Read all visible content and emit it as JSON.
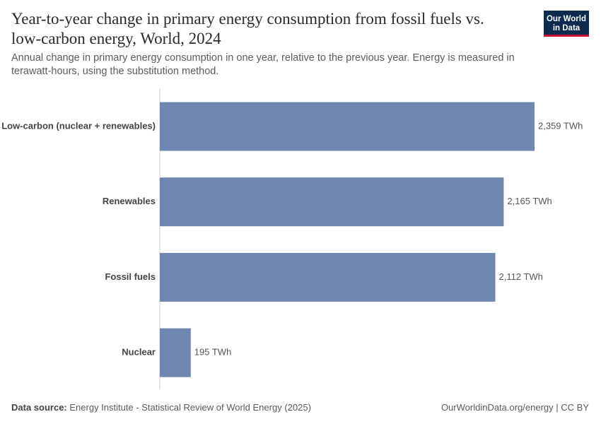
{
  "chart_data": {
    "type": "bar",
    "orientation": "horizontal",
    "title": "Year-to-year change in primary energy consumption from fossil fuels vs. low-carbon energy, World, 2024",
    "subtitle": "Annual change in primary energy consumption in one year, relative to the previous year. Energy is measured in terawatt-hours, using the substitution method.",
    "categories": [
      "Low-carbon (nuclear + renewables)",
      "Renewables",
      "Fossil fuels",
      "Nuclear"
    ],
    "values": [
      2359,
      2165,
      2112,
      195
    ],
    "value_labels": [
      "2,359 TWh",
      "2,165 TWh",
      "2,112 TWh",
      "195 TWh"
    ],
    "color": "#6f87b0"
  },
  "logo": [
    "Our World",
    "in Data"
  ],
  "footer": {
    "source_label": "Data source:",
    "source": "Energy Institute - Statistical Review of World Energy (2025)",
    "license": "OurWorldinData.org/energy | CC BY"
  }
}
